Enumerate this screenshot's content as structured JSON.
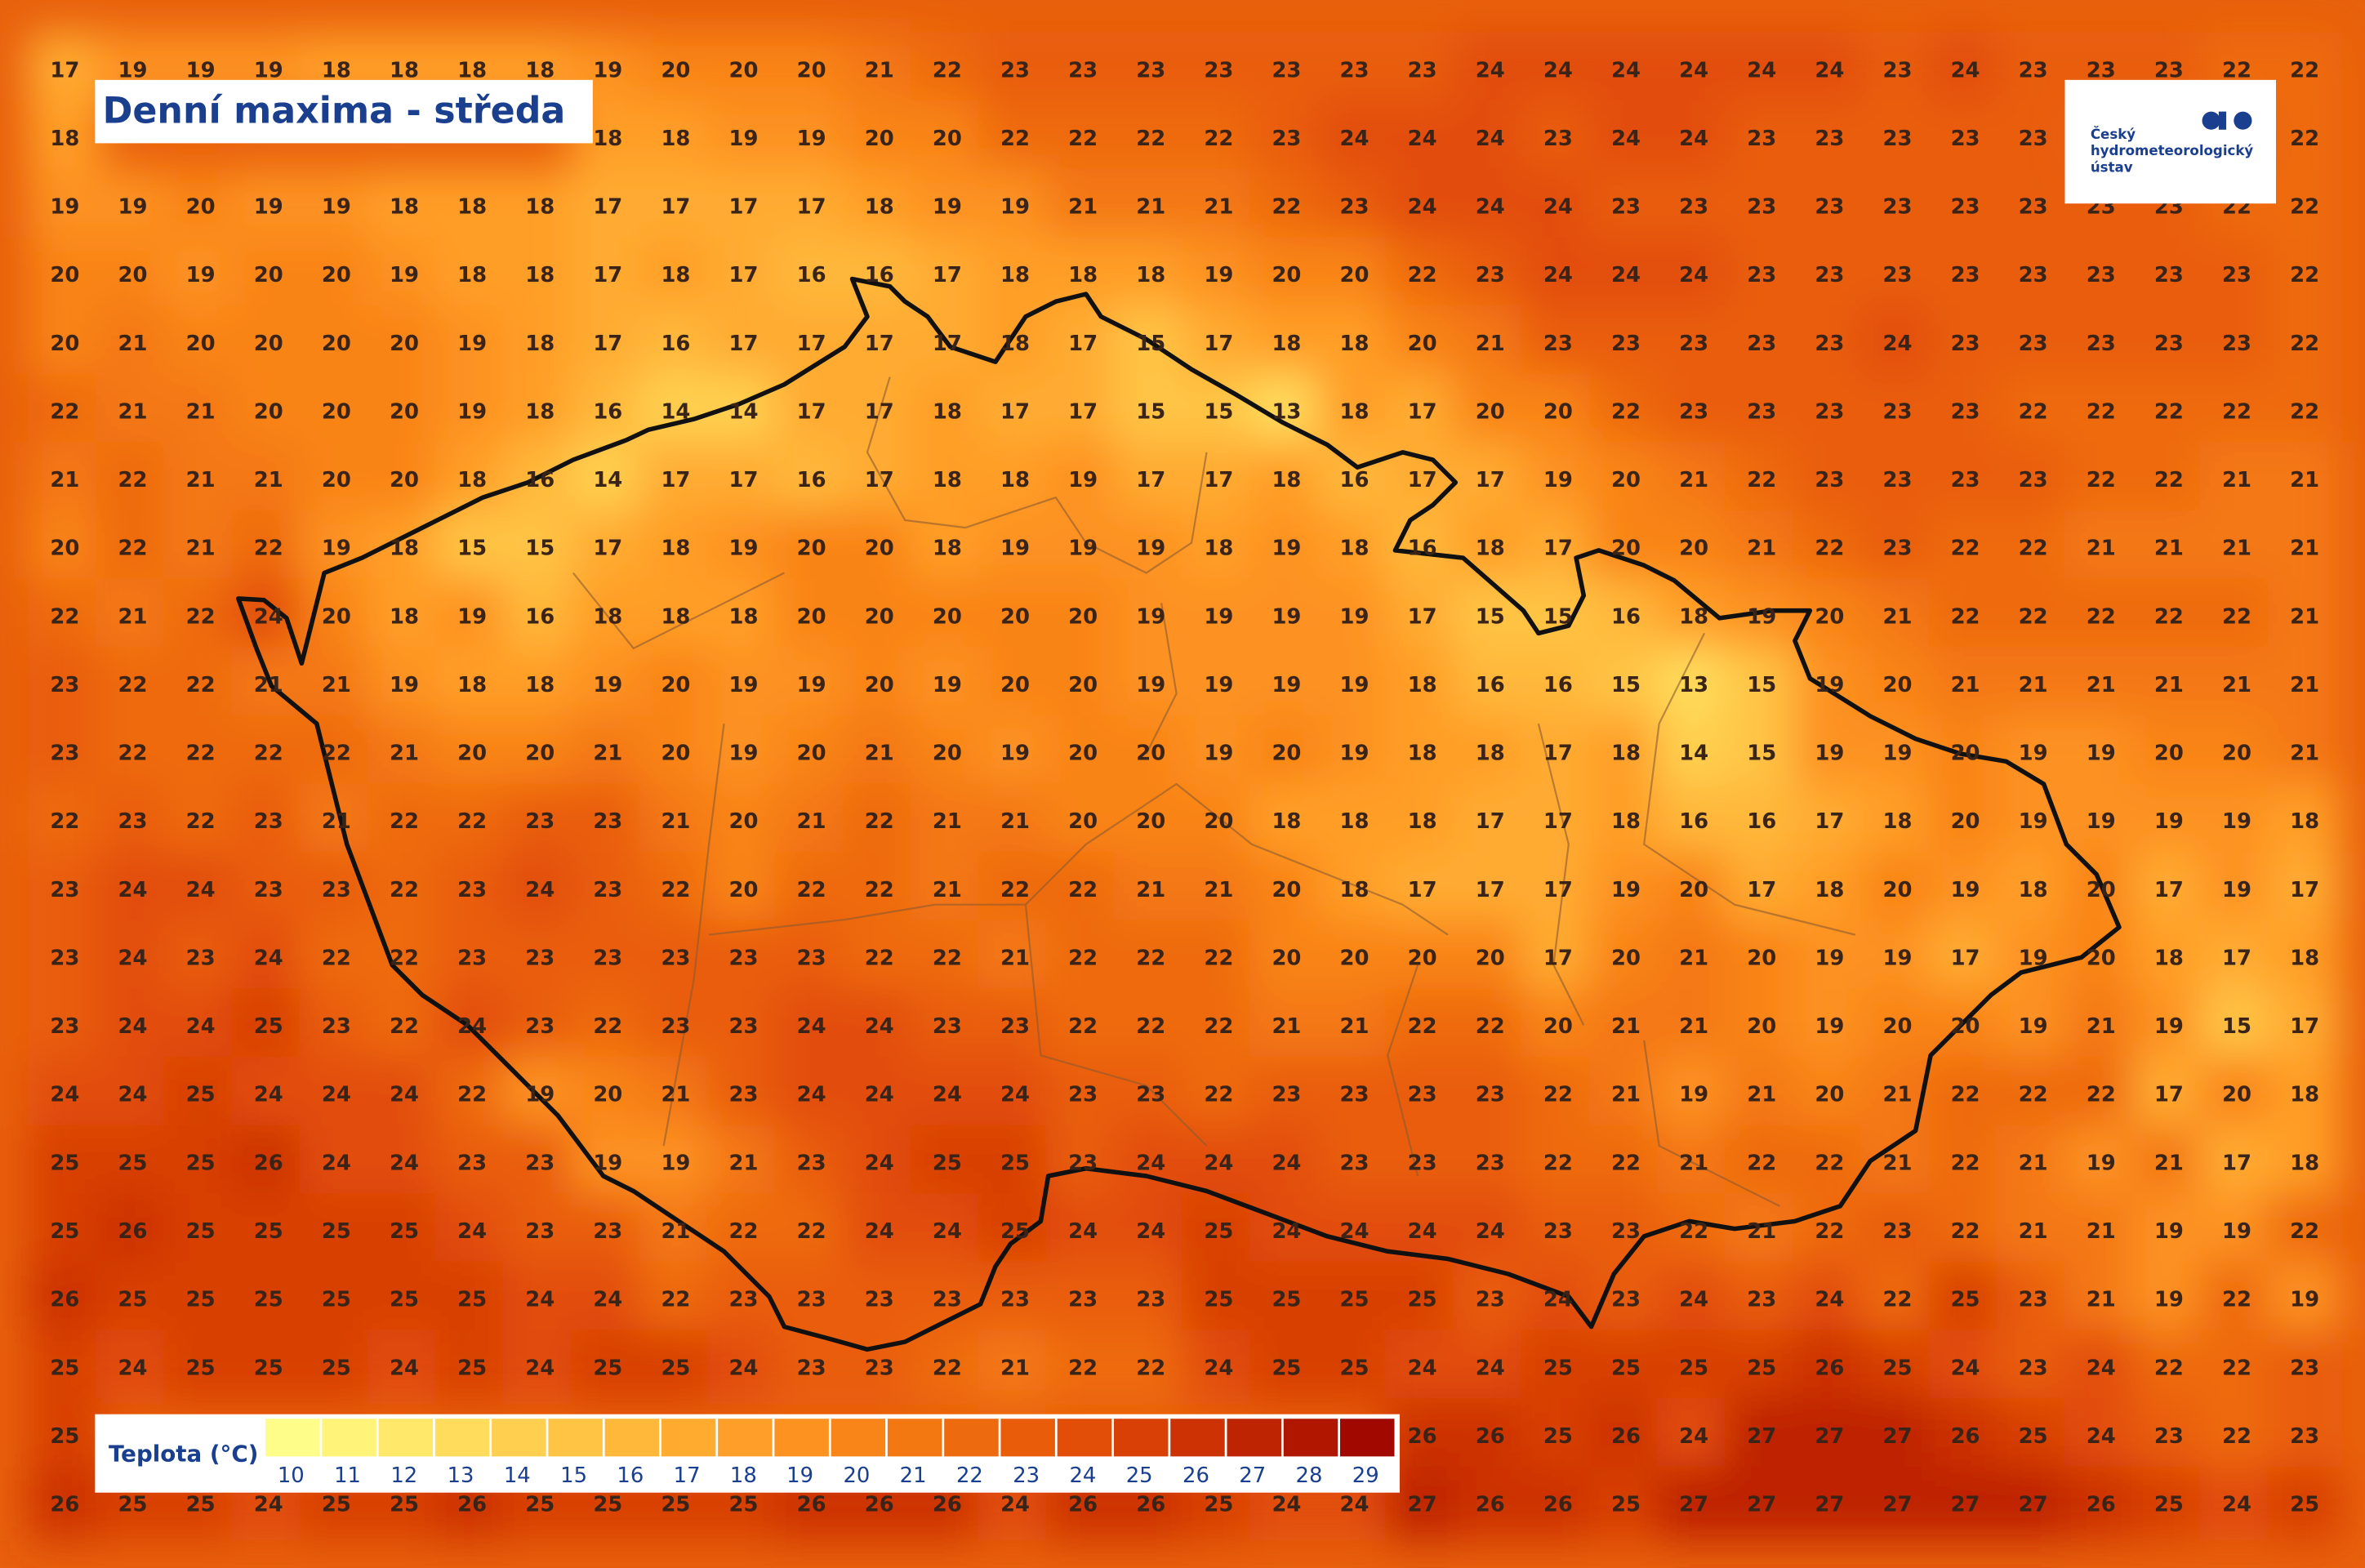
{
  "title": "Denní maxima - středa",
  "logo": {
    "lines": [
      "Český",
      "hydrometeorologický",
      "ústav"
    ]
  },
  "legend": {
    "title": "Teplota (°C)",
    "stops": [
      {
        "value": 10,
        "color": "#fffd8a"
      },
      {
        "value": 11,
        "color": "#fff37a"
      },
      {
        "value": 12,
        "color": "#ffe86a"
      },
      {
        "value": 13,
        "color": "#ffdc5c"
      },
      {
        "value": 14,
        "color": "#ffd050"
      },
      {
        "value": 15,
        "color": "#ffc444"
      },
      {
        "value": 16,
        "color": "#ffb83a"
      },
      {
        "value": 17,
        "color": "#ffab30"
      },
      {
        "value": 18,
        "color": "#ff9e28"
      },
      {
        "value": 19,
        "color": "#fd9220"
      },
      {
        "value": 20,
        "color": "#f98418"
      },
      {
        "value": 21,
        "color": "#f47812"
      },
      {
        "value": 22,
        "color": "#ee6a0e"
      },
      {
        "value": 23,
        "color": "#e95d0a"
      },
      {
        "value": 24,
        "color": "#e24e08"
      },
      {
        "value": 25,
        "color": "#d84006"
      },
      {
        "value": 26,
        "color": "#cc3204"
      },
      {
        "value": 27,
        "color": "#be2402"
      },
      {
        "value": 28,
        "color": "#b01600"
      },
      {
        "value": 29,
        "color": "#a00800"
      }
    ]
  },
  "grid": {
    "rows": [
      [
        17,
        19,
        19,
        19,
        18,
        18,
        18,
        18,
        19,
        20,
        20,
        20,
        21,
        22,
        23,
        23,
        23,
        23,
        23,
        23,
        23,
        24,
        24,
        24,
        24,
        24,
        24,
        23,
        24,
        23,
        23,
        23,
        22,
        22
      ],
      [
        18,
        null,
        null,
        null,
        null,
        null,
        null,
        null,
        18,
        18,
        19,
        19,
        20,
        20,
        22,
        22,
        22,
        22,
        23,
        24,
        24,
        24,
        23,
        24,
        24,
        23,
        23,
        23,
        23,
        23,
        null,
        null,
        null,
        22
      ],
      [
        19,
        19,
        20,
        19,
        19,
        18,
        18,
        18,
        17,
        17,
        17,
        17,
        18,
        19,
        19,
        21,
        21,
        21,
        22,
        23,
        24,
        24,
        24,
        23,
        23,
        23,
        23,
        23,
        23,
        23,
        23,
        23,
        22,
        22
      ],
      [
        20,
        20,
        19,
        20,
        20,
        19,
        18,
        18,
        17,
        18,
        17,
        16,
        16,
        17,
        18,
        18,
        18,
        19,
        20,
        20,
        22,
        23,
        24,
        24,
        24,
        23,
        23,
        23,
        23,
        23,
        23,
        23,
        23,
        22
      ],
      [
        20,
        21,
        20,
        20,
        20,
        20,
        19,
        18,
        17,
        16,
        17,
        17,
        17,
        17,
        18,
        17,
        15,
        17,
        18,
        18,
        20,
        21,
        23,
        23,
        23,
        23,
        23,
        24,
        23,
        23,
        23,
        23,
        23,
        22
      ],
      [
        22,
        21,
        21,
        20,
        20,
        20,
        19,
        18,
        16,
        14,
        14,
        17,
        17,
        18,
        17,
        17,
        15,
        15,
        13,
        18,
        17,
        20,
        20,
        22,
        23,
        23,
        23,
        23,
        23,
        22,
        22,
        22,
        22,
        22
      ],
      [
        21,
        22,
        21,
        21,
        20,
        20,
        18,
        16,
        14,
        17,
        17,
        16,
        17,
        18,
        18,
        19,
        17,
        17,
        18,
        16,
        17,
        17,
        19,
        20,
        21,
        22,
        23,
        23,
        23,
        23,
        22,
        22,
        21,
        21
      ],
      [
        20,
        22,
        21,
        22,
        19,
        18,
        15,
        15,
        17,
        18,
        19,
        20,
        20,
        18,
        19,
        19,
        19,
        18,
        19,
        18,
        16,
        18,
        17,
        20,
        20,
        21,
        22,
        23,
        22,
        22,
        21,
        21,
        21,
        21
      ],
      [
        22,
        21,
        22,
        24,
        20,
        18,
        19,
        16,
        18,
        18,
        18,
        20,
        20,
        20,
        20,
        20,
        19,
        19,
        19,
        19,
        17,
        15,
        15,
        16,
        18,
        19,
        20,
        21,
        22,
        22,
        22,
        22,
        22,
        21
      ],
      [
        23,
        22,
        22,
        21,
        21,
        19,
        18,
        18,
        19,
        20,
        19,
        19,
        20,
        19,
        20,
        20,
        19,
        19,
        19,
        19,
        18,
        16,
        16,
        15,
        13,
        15,
        19,
        20,
        21,
        21,
        21,
        21,
        21,
        21
      ],
      [
        23,
        22,
        22,
        22,
        22,
        21,
        20,
        20,
        21,
        20,
        19,
        20,
        21,
        20,
        19,
        20,
        20,
        19,
        20,
        19,
        18,
        18,
        17,
        18,
        14,
        15,
        19,
        19,
        20,
        19,
        19,
        20,
        20,
        21
      ],
      [
        22,
        23,
        22,
        23,
        21,
        22,
        22,
        23,
        23,
        21,
        20,
        21,
        22,
        21,
        21,
        20,
        20,
        20,
        18,
        18,
        18,
        17,
        17,
        18,
        16,
        16,
        17,
        18,
        20,
        19,
        19,
        19,
        19,
        18
      ],
      [
        23,
        24,
        24,
        23,
        23,
        22,
        23,
        24,
        23,
        22,
        20,
        22,
        22,
        21,
        22,
        22,
        21,
        21,
        20,
        18,
        17,
        17,
        17,
        19,
        20,
        17,
        18,
        20,
        19,
        18,
        20,
        17,
        19,
        17
      ],
      [
        23,
        24,
        23,
        24,
        22,
        22,
        23,
        23,
        23,
        23,
        23,
        23,
        22,
        22,
        21,
        22,
        22,
        22,
        20,
        20,
        20,
        20,
        17,
        20,
        21,
        20,
        19,
        19,
        17,
        19,
        20,
        18,
        17,
        18
      ],
      [
        23,
        24,
        24,
        25,
        23,
        22,
        24,
        23,
        22,
        23,
        23,
        24,
        24,
        23,
        23,
        22,
        22,
        22,
        21,
        21,
        22,
        22,
        20,
        21,
        21,
        20,
        19,
        20,
        20,
        19,
        21,
        19,
        15,
        17
      ],
      [
        24,
        24,
        25,
        24,
        24,
        24,
        22,
        19,
        20,
        21,
        23,
        24,
        24,
        24,
        24,
        23,
        23,
        22,
        23,
        23,
        23,
        23,
        22,
        21,
        19,
        21,
        20,
        21,
        22,
        22,
        22,
        17,
        20,
        18
      ],
      [
        25,
        25,
        25,
        26,
        24,
        24,
        23,
        23,
        19,
        19,
        21,
        23,
        24,
        25,
        25,
        23,
        24,
        24,
        24,
        23,
        23,
        23,
        22,
        22,
        21,
        22,
        22,
        21,
        22,
        21,
        19,
        21,
        17,
        18
      ],
      [
        25,
        26,
        25,
        25,
        25,
        25,
        24,
        23,
        23,
        21,
        22,
        22,
        24,
        24,
        25,
        24,
        24,
        25,
        24,
        24,
        24,
        24,
        23,
        23,
        22,
        21,
        22,
        23,
        22,
        21,
        21,
        19,
        19,
        22
      ],
      [
        26,
        25,
        25,
        25,
        25,
        25,
        25,
        24,
        24,
        22,
        23,
        23,
        23,
        23,
        23,
        23,
        23,
        25,
        25,
        25,
        25,
        23,
        24,
        23,
        24,
        23,
        24,
        22,
        25,
        23,
        21,
        19,
        22,
        19
      ],
      [
        25,
        24,
        25,
        25,
        25,
        24,
        25,
        24,
        25,
        25,
        24,
        23,
        23,
        22,
        21,
        22,
        22,
        24,
        25,
        25,
        24,
        24,
        25,
        25,
        25,
        25,
        26,
        25,
        24,
        23,
        24,
        22,
        22,
        23
      ],
      [
        25,
        null,
        null,
        null,
        null,
        null,
        null,
        null,
        null,
        null,
        null,
        null,
        null,
        null,
        null,
        null,
        null,
        null,
        null,
        null,
        26,
        26,
        25,
        26,
        24,
        27,
        27,
        27,
        26,
        25,
        24,
        23,
        22,
        23
      ],
      [
        26,
        25,
        25,
        24,
        25,
        25,
        26,
        25,
        25,
        25,
        25,
        26,
        26,
        26,
        24,
        26,
        26,
        25,
        24,
        24,
        27,
        26,
        26,
        25,
        27,
        27,
        27,
        27,
        27,
        27,
        26,
        25,
        24,
        25
      ]
    ]
  }
}
